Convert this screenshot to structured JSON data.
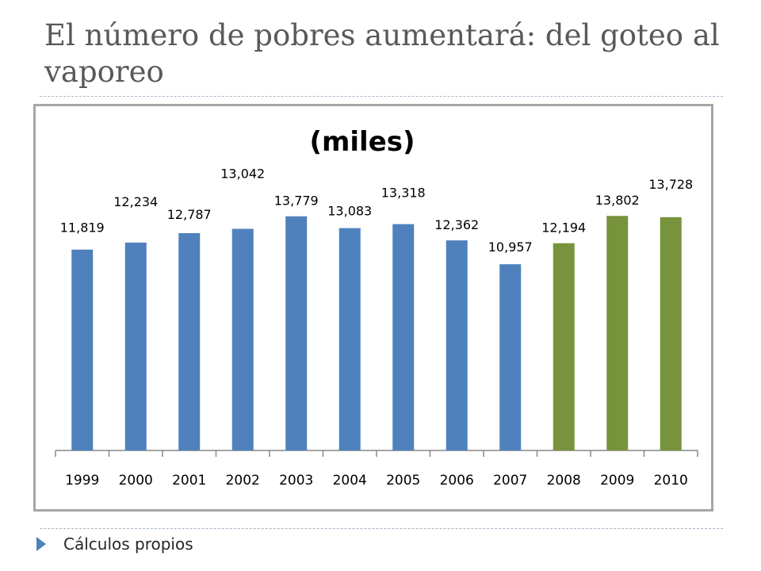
{
  "slide": {
    "title": "El número de pobres aumentará: del goteo al vaporeo",
    "source_note": "Cálculos propios",
    "bullet_icon": "triangle-bullet-icon"
  },
  "colors": {
    "observed": "#4f81bd",
    "projected": "#77933c"
  },
  "chart_data": {
    "type": "bar",
    "title": "(miles)",
    "xlabel": "",
    "ylabel": "",
    "categories": [
      "1999",
      "2000",
      "2001",
      "2002",
      "2003",
      "2004",
      "2005",
      "2006",
      "2007",
      "2008",
      "2009",
      "2010"
    ],
    "values": [
      11819,
      12234,
      12787,
      13042,
      13779,
      13083,
      13318,
      12362,
      10957,
      12194,
      13802,
      13728
    ],
    "value_labels": [
      "11,819",
      "12,234",
      "12,787",
      "13,042",
      "13,779",
      "13,083",
      "13,318",
      "12,362",
      "10,957",
      "12,194",
      "13,802",
      "13,728"
    ],
    "bar_colors": [
      "#4f81bd",
      "#4f81bd",
      "#4f81bd",
      "#4f81bd",
      "#4f81bd",
      "#4f81bd",
      "#4f81bd",
      "#4f81bd",
      "#4f81bd",
      "#77933c",
      "#77933c",
      "#77933c"
    ],
    "ylim": [
      0,
      14000
    ],
    "grid": false,
    "legend": "none"
  }
}
